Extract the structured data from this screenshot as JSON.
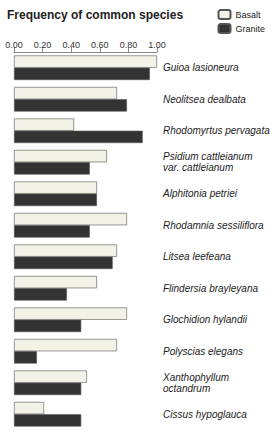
{
  "chart_data": {
    "type": "bar",
    "orientation": "horizontal",
    "title": "Frequency of common species",
    "categories": [
      "Guioa lasioneura",
      "Neolitsea dealbata",
      "Rhodomyrtus pervagata",
      "Psidium cattleianum var. cattleianum",
      "Alphitonia petriei",
      "Rhodamnia sessiliflora",
      "Litsea leefeana",
      "Flindersia brayleyana",
      "Glochidion hylandii",
      "Polyscias elegans",
      "Xanthophyllum octandrum",
      "Cissus hypoglauca"
    ],
    "series": [
      {
        "name": "Basalt",
        "color": "#f2f2e6",
        "values": [
          1.0,
          0.72,
          0.42,
          0.65,
          0.58,
          0.79,
          0.72,
          0.58,
          0.79,
          0.72,
          0.51,
          0.21
        ]
      },
      {
        "name": "Granite",
        "color": "#333333",
        "values": [
          0.95,
          0.79,
          0.9,
          0.53,
          0.58,
          0.53,
          0.69,
          0.37,
          0.47,
          0.16,
          0.47,
          0.47
        ]
      }
    ],
    "xlim": [
      0,
      1
    ],
    "xticks": [
      {
        "value": 0,
        "label": "0.00"
      },
      {
        "value": 0.2,
        "label": "0.20"
      },
      {
        "value": 0.4,
        "label": "0.40"
      },
      {
        "value": 0.6,
        "label": "0.60"
      },
      {
        "value": 0.8,
        "label": "0.80"
      },
      {
        "value": 1,
        "label": "1.00"
      }
    ],
    "grid": false,
    "legend": "top-right"
  }
}
